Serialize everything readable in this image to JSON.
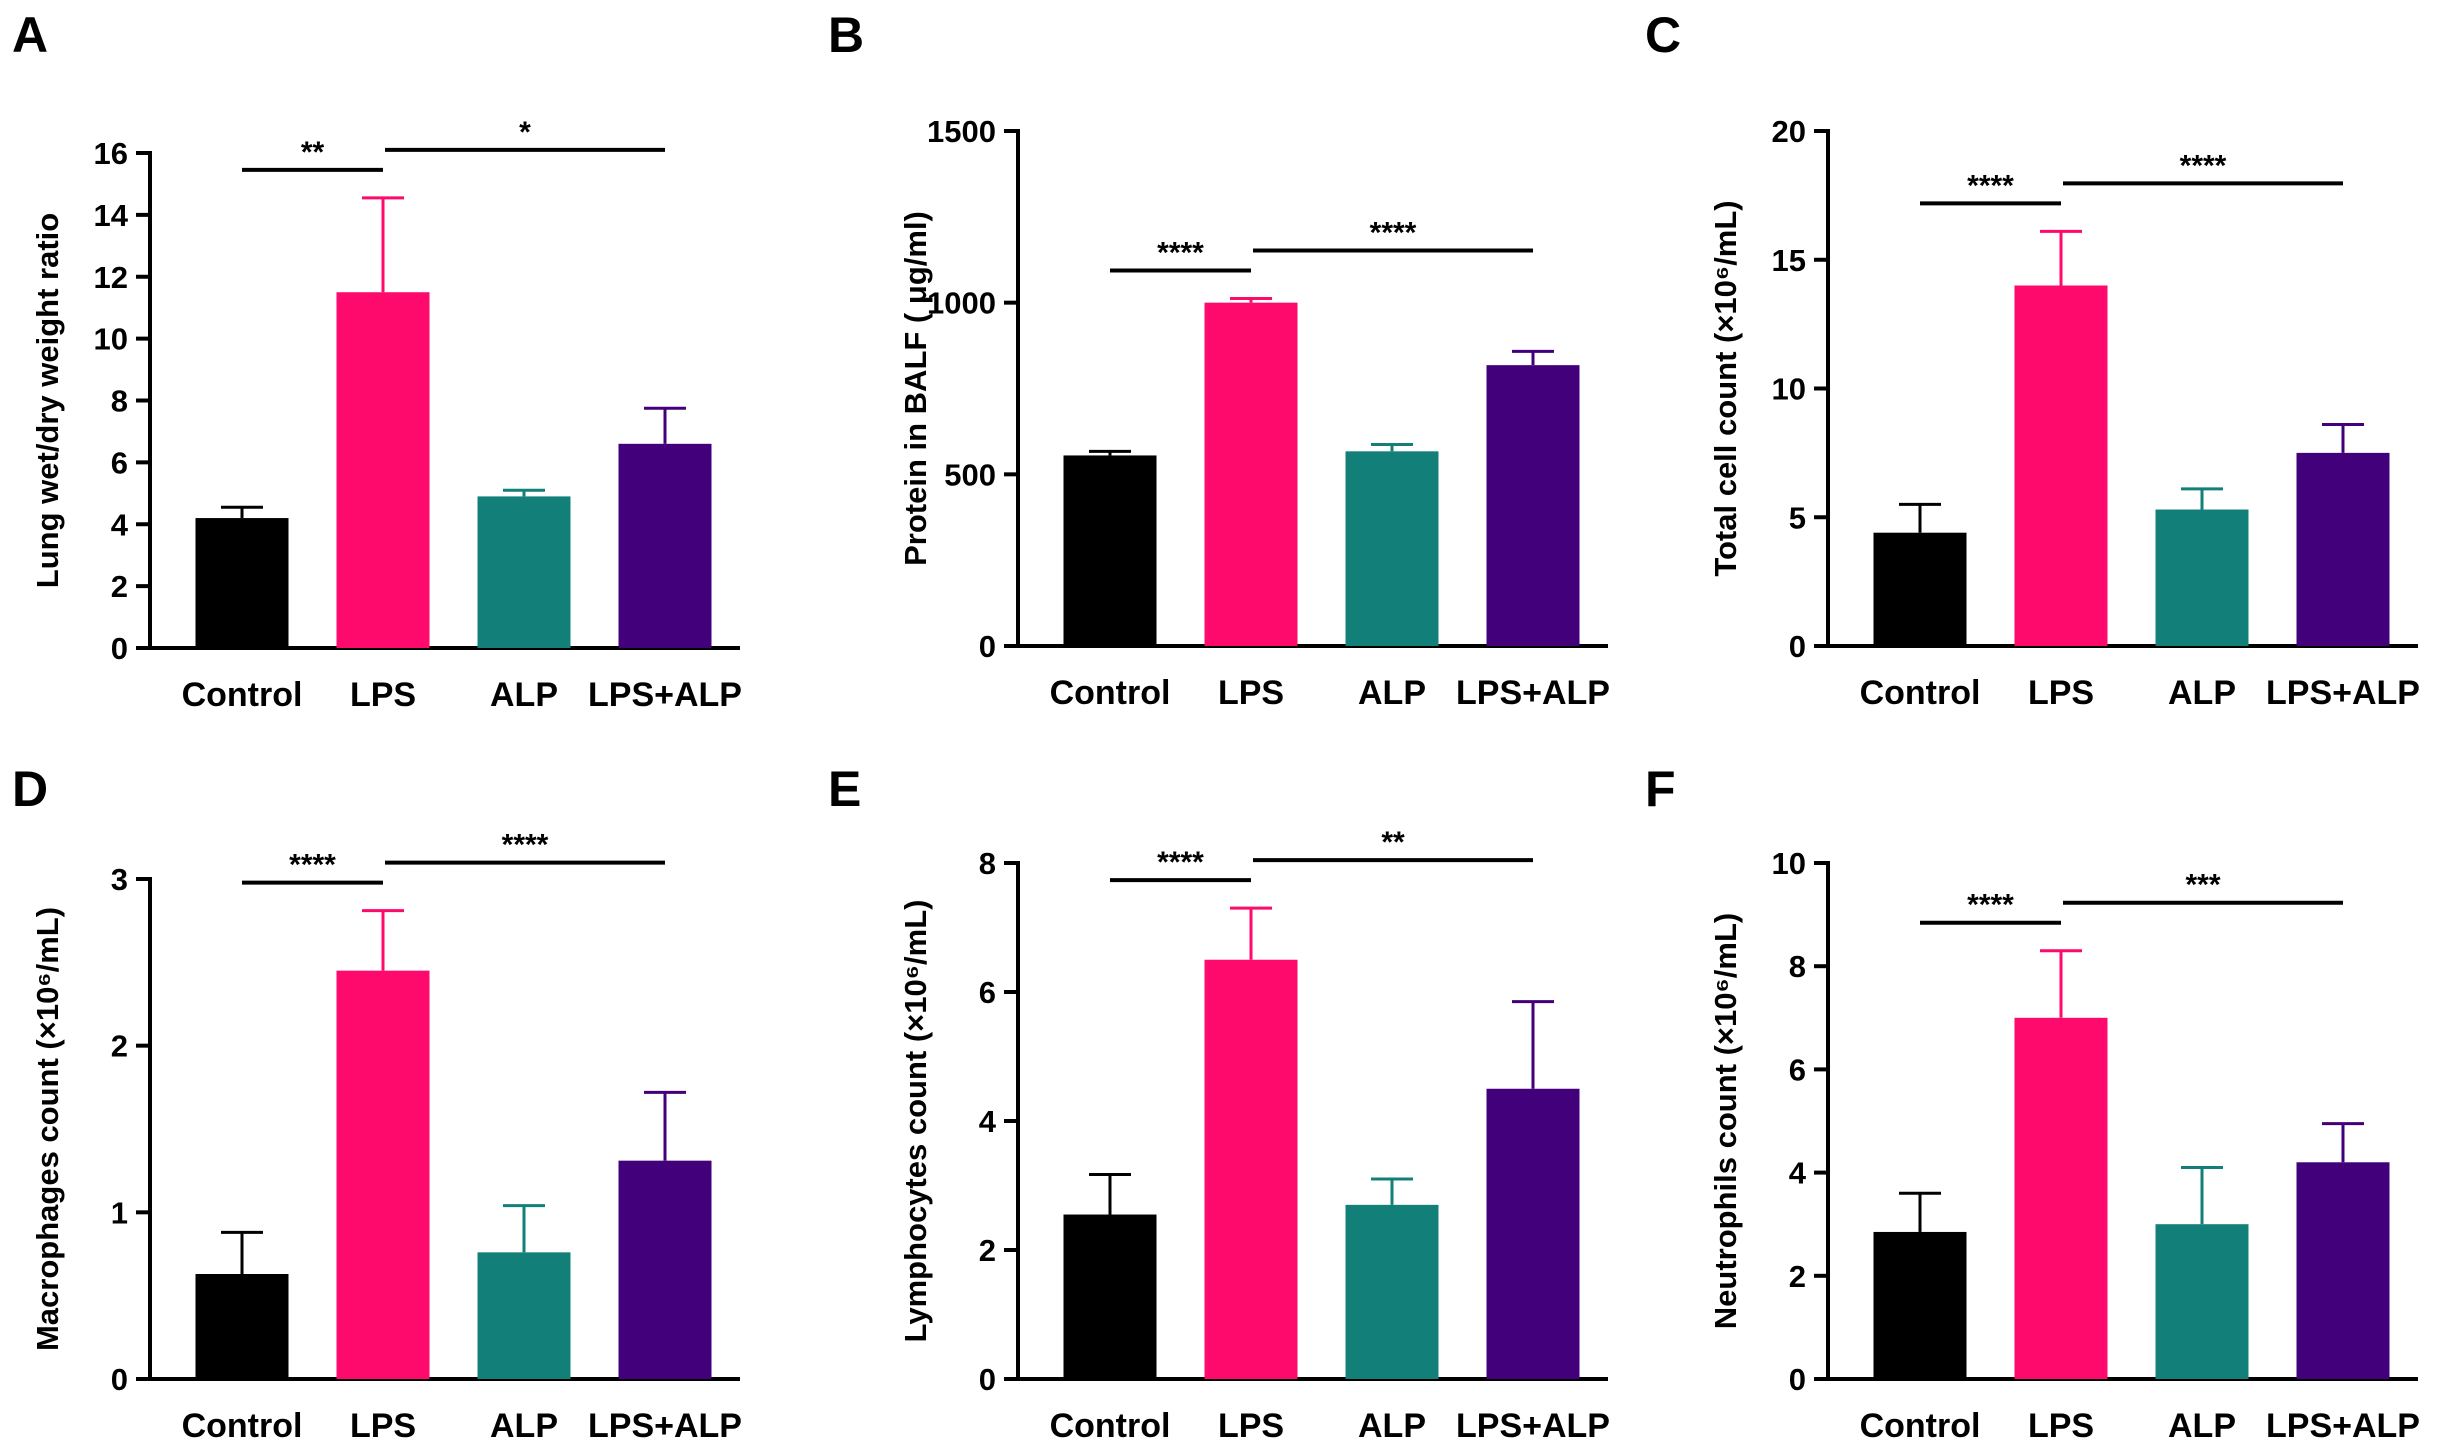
{
  "colors": {
    "Control": "#000000",
    "LPS": "#fe0a6c",
    "ALP": "#128079",
    "LPS+ALP": "#42007b"
  },
  "chart_data": [
    {
      "panel": "A",
      "type": "bar",
      "ylabel": "Lung wet/dry weight ratio",
      "ylim": [
        0,
        16
      ],
      "yticks": [
        "0",
        "2",
        "4",
        "6",
        "8",
        "10",
        "12",
        "14",
        "16"
      ],
      "categories": [
        "Control",
        "LPS",
        "ALP",
        "LPS+ALP"
      ],
      "values": [
        4.2,
        11.5,
        4.9,
        6.6
      ],
      "errors": [
        0.35,
        3.05,
        0.2,
        1.15
      ],
      "significance": [
        {
          "from": 0,
          "to": 1,
          "label": "**"
        },
        {
          "from": 1,
          "to": 3,
          "label": "*"
        }
      ]
    },
    {
      "panel": "B",
      "type": "bar",
      "ylabel": "Protein in BALF ( μg/ml)",
      "ylim": [
        0,
        1500
      ],
      "yticks": [
        "0",
        "500",
        "1000",
        "1500"
      ],
      "categories": [
        "Control",
        "LPS",
        "ALP",
        "LPS+ALP"
      ],
      "values": [
        555,
        1000,
        567,
        818
      ],
      "errors": [
        12,
        12,
        20,
        40
      ],
      "significance": [
        {
          "from": 0,
          "to": 1,
          "label": "****"
        },
        {
          "from": 1,
          "to": 3,
          "label": "****"
        }
      ]
    },
    {
      "panel": "C",
      "type": "bar",
      "ylabel": "Total cell count (×10⁶/mL)",
      "ylim": [
        0,
        20
      ],
      "yticks": [
        "0",
        "5",
        "10",
        "15",
        "20"
      ],
      "categories": [
        "Control",
        "LPS",
        "ALP",
        "LPS+ALP"
      ],
      "values": [
        4.4,
        14.0,
        5.3,
        7.5
      ],
      "errors": [
        1.1,
        2.1,
        0.8,
        1.1
      ],
      "significance": [
        {
          "from": 0,
          "to": 1,
          "label": "****"
        },
        {
          "from": 1,
          "to": 3,
          "label": "****"
        }
      ]
    },
    {
      "panel": "D",
      "type": "bar",
      "ylabel": "Macrophages count (×10⁶/mL)",
      "ylim": [
        0,
        3
      ],
      "yticks": [
        "0",
        "1",
        "2",
        "3"
      ],
      "categories": [
        "Control",
        "LPS",
        "ALP",
        "LPS+ALP"
      ],
      "values": [
        0.63,
        2.45,
        0.76,
        1.31
      ],
      "errors": [
        0.25,
        0.36,
        0.28,
        0.41
      ],
      "significance": [
        {
          "from": 0,
          "to": 1,
          "label": "****"
        },
        {
          "from": 1,
          "to": 3,
          "label": "****"
        }
      ]
    },
    {
      "panel": "E",
      "type": "bar",
      "ylabel": "Lymphocytes count (×10⁶/mL)",
      "ylim": [
        0,
        8
      ],
      "yticks": [
        "0",
        "2",
        "4",
        "6",
        "8"
      ],
      "categories": [
        "Control",
        "LPS",
        "ALP",
        "LPS+ALP"
      ],
      "values": [
        2.55,
        6.5,
        2.7,
        4.5
      ],
      "errors": [
        0.62,
        0.8,
        0.4,
        1.35
      ],
      "significance": [
        {
          "from": 0,
          "to": 1,
          "label": "****"
        },
        {
          "from": 1,
          "to": 3,
          "label": "**"
        }
      ]
    },
    {
      "panel": "F",
      "type": "bar",
      "ylabel": "Neutrophils count (×10⁶/mL)",
      "ylim": [
        0,
        10
      ],
      "yticks": [
        "0",
        "2",
        "4",
        "6",
        "8",
        "10"
      ],
      "categories": [
        "Control",
        "LPS",
        "ALP",
        "LPS+ALP"
      ],
      "values": [
        2.85,
        7.0,
        3.0,
        4.2
      ],
      "errors": [
        0.75,
        1.3,
        1.1,
        0.75
      ],
      "significance": [
        {
          "from": 0,
          "to": 1,
          "label": "****"
        },
        {
          "from": 1,
          "to": 3,
          "label": "***"
        }
      ]
    }
  ]
}
